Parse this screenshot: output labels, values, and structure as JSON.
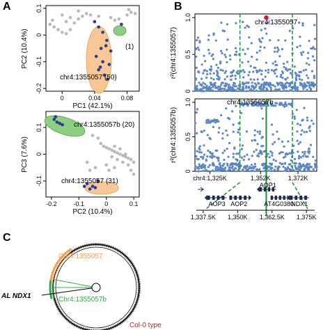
{
  "panels": {
    "a": "A",
    "b": "B",
    "c": "C"
  },
  "colors": {
    "grey_points": "#b8b8b8",
    "blue_points": "#2a3c8f",
    "orange_fill": "#f8c795",
    "green_fill": "#8fcf84",
    "snp_blue": "#5b86c6",
    "green_line": "#1f8f3a",
    "red_marker": "#e0102f",
    "gene_dark": "#1b2a55"
  },
  "chart_data": [
    {
      "id": "pca-top",
      "type": "scatter",
      "xlabel": "PC1 (42.1%)",
      "ylabel": "PC2 (10.4%)",
      "xlim": [
        -0.02,
        0.095
      ],
      "ylim": [
        -0.21,
        0.11
      ],
      "xticks": [
        0,
        0.04,
        0.08
      ],
      "xtick_labels": [
        "0",
        "0.04",
        "0.08"
      ],
      "yticks": [
        0.1,
        0,
        -0.1,
        -0.2
      ],
      "ytick_labels": [
        "0.1",
        "0",
        "-0.1",
        "-0.2"
      ],
      "annotations": [
        "chr4:1355057 (50)",
        "(1)"
      ],
      "series": [
        {
          "group": "other",
          "color": "grey",
          "points": [
            [
              -0.015,
              0.04
            ],
            [
              -0.01,
              0.03
            ],
            [
              -0.005,
              0.02
            ],
            [
              0.0,
              0.01
            ],
            [
              0.005,
              0.005
            ],
            [
              0.01,
              0.02
            ],
            [
              0.015,
              0.045
            ],
            [
              0.02,
              0.06
            ],
            [
              0.025,
              0.07
            ],
            [
              0.03,
              0.08
            ],
            [
              0.035,
              0.075
            ],
            [
              0.02,
              0.09
            ],
            [
              0.0,
              0.075
            ],
            [
              0.01,
              0.065
            ],
            [
              0.045,
              0.07
            ],
            [
              0.06,
              0.065
            ],
            [
              0.065,
              0.055
            ],
            [
              0.07,
              0.06
            ],
            [
              0.08,
              0.075
            ],
            [
              0.085,
              0.085
            ],
            [
              0.09,
              0.08
            ],
            [
              0.082,
              0.095
            ],
            [
              -0.012,
              0.055
            ],
            [
              0.005,
              0.05
            ]
          ]
        },
        {
          "group": "chr4:1355057",
          "color": "blue",
          "points": [
            [
              0.04,
              0.05
            ],
            [
              0.045,
              0.03
            ],
            [
              0.05,
              0.01
            ],
            [
              0.055,
              -0.02
            ],
            [
              0.048,
              -0.05
            ],
            [
              0.06,
              -0.06
            ],
            [
              0.042,
              -0.08
            ],
            [
              0.05,
              -0.1
            ],
            [
              0.058,
              -0.11
            ],
            [
              0.045,
              -0.13
            ],
            [
              0.052,
              -0.15
            ],
            [
              0.056,
              -0.165
            ],
            [
              0.047,
              -0.12
            ],
            [
              0.054,
              -0.04
            ]
          ]
        },
        {
          "group": "(1)",
          "color": "blue",
          "points": [
            [
              0.073,
              0.04
            ]
          ]
        }
      ]
    },
    {
      "id": "pca-bottom",
      "type": "scatter",
      "xlabel": "PC2 (10.4%)",
      "ylabel": "PC3 (7.6%)",
      "xlim": [
        -0.22,
        0.12
      ],
      "ylim": [
        -0.16,
        0.16
      ],
      "xticks": [
        -0.2,
        -0.1,
        0,
        0.1
      ],
      "xtick_labels": [
        "-0.2",
        "-0.1",
        "0",
        "0.1"
      ],
      "yticks": [
        0.1,
        0,
        -0.1
      ],
      "ytick_labels": [
        "0.1",
        "0",
        "-0.1"
      ],
      "annotations": [
        "chr4:1355057b (20)",
        "chr4:1355057 (31)"
      ],
      "series": [
        {
          "group": "other",
          "color": "grey",
          "points": [
            [
              -0.02,
              0.04
            ],
            [
              -0.01,
              0.03
            ],
            [
              0.0,
              0.025
            ],
            [
              0.01,
              0.02
            ],
            [
              0.02,
              0.015
            ],
            [
              0.03,
              0.01
            ],
            [
              0.04,
              0.005
            ],
            [
              0.05,
              0.0
            ],
            [
              0.06,
              -0.005
            ],
            [
              0.07,
              -0.01
            ],
            [
              0.08,
              -0.015
            ],
            [
              0.09,
              -0.02
            ],
            [
              0.1,
              -0.03
            ],
            [
              0.03,
              0.03
            ],
            [
              0.05,
              0.02
            ],
            [
              0.07,
              0.0
            ],
            [
              0.02,
              -0.01
            ],
            [
              0.04,
              -0.02
            ],
            [
              0.06,
              -0.03
            ],
            [
              0.0,
              -0.04
            ],
            [
              0.01,
              -0.06
            ],
            [
              0.03,
              -0.05
            ],
            [
              -0.03,
              0.06
            ],
            [
              -0.05,
              0.07
            ],
            [
              -0.07,
              -0.03
            ],
            [
              -0.06,
              -0.06
            ],
            [
              -0.04,
              -0.05
            ],
            [
              0.08,
              -0.04
            ],
            [
              0.09,
              -0.06
            ],
            [
              0.1,
              -0.075
            ]
          ]
        },
        {
          "group": "chr4:1355057b",
          "color": "blue",
          "points": [
            [
              -0.19,
              0.13
            ],
            [
              -0.18,
              0.12
            ],
            [
              -0.17,
              0.115
            ],
            [
              -0.16,
              0.11
            ],
            [
              -0.185,
              0.14
            ]
          ]
        },
        {
          "group": "chr4:1355057",
          "color": "blue",
          "points": [
            [
              -0.08,
              -0.12
            ],
            [
              -0.06,
              -0.13
            ],
            [
              -0.05,
              -0.12
            ],
            [
              -0.04,
              -0.125
            ],
            [
              -0.03,
              -0.1
            ],
            [
              -0.07,
              -0.11
            ]
          ]
        }
      ]
    },
    {
      "id": "ld-top",
      "type": "scatter",
      "ylabel": "r²(chr4:1355057)",
      "ylim": [
        0,
        1.05
      ],
      "yticks": [
        0,
        0.5,
        1.0
      ],
      "ytick_labels": [
        "0",
        "0.5",
        "1.0"
      ],
      "xlim": [
        1317000,
        1382000
      ],
      "focal_snp": {
        "label": "chr4:1355057",
        "x": 1355057,
        "y": 1.0
      },
      "boundaries": [
        1341000,
        1369000
      ]
    },
    {
      "id": "ld-bottom",
      "type": "scatter",
      "ylabel": "r²(chr4:1355057b)",
      "ylim": [
        0,
        1.05
      ],
      "yticks": [
        0,
        0.5,
        1.0
      ],
      "ytick_labels": [
        "0",
        "0.5",
        "1.0"
      ],
      "xlim": [
        1317000,
        1382000
      ],
      "xticks": [
        1325000,
        1352000,
        1372000
      ],
      "xtick_labels": [
        "chr4:1,325K",
        "1,352K",
        "1,372K"
      ],
      "focal_snp": {
        "label": "chr4:1355057b",
        "x": 1355057,
        "y": 1.0
      },
      "boundaries": [
        1341000,
        1369000
      ]
    },
    {
      "id": "gene-track",
      "type": "diagram",
      "xlim": [
        1335000,
        1378000
      ],
      "xticks": [
        1337500,
        1350000,
        1362500,
        1375000
      ],
      "xtick_labels": [
        "1,337.5K",
        "1,350K",
        "1,362.5K",
        "1,375K"
      ],
      "genes": [
        {
          "name": "AOP3",
          "start": 1339000,
          "end": 1346000,
          "strand": "-",
          "row": 2
        },
        {
          "name": "AOP2",
          "start": 1347000,
          "end": 1354000,
          "strand": "+",
          "row": 2
        },
        {
          "name": "AOP1",
          "start": 1358000,
          "end": 1364000,
          "strand": "-",
          "row": 1
        },
        {
          "name": "AT4G0380",
          "start": 1362000,
          "end": 1368000,
          "strand": "+",
          "row": 2
        },
        {
          "name": "NDX1",
          "start": 1369000,
          "end": 1376000,
          "strand": "-",
          "row": 2
        }
      ]
    },
    {
      "id": "tree",
      "type": "diagram",
      "labels": [
        "Chr4:1355057",
        "Chr4:1355057b",
        "AL NDX1",
        "Col-0 type"
      ]
    }
  ]
}
